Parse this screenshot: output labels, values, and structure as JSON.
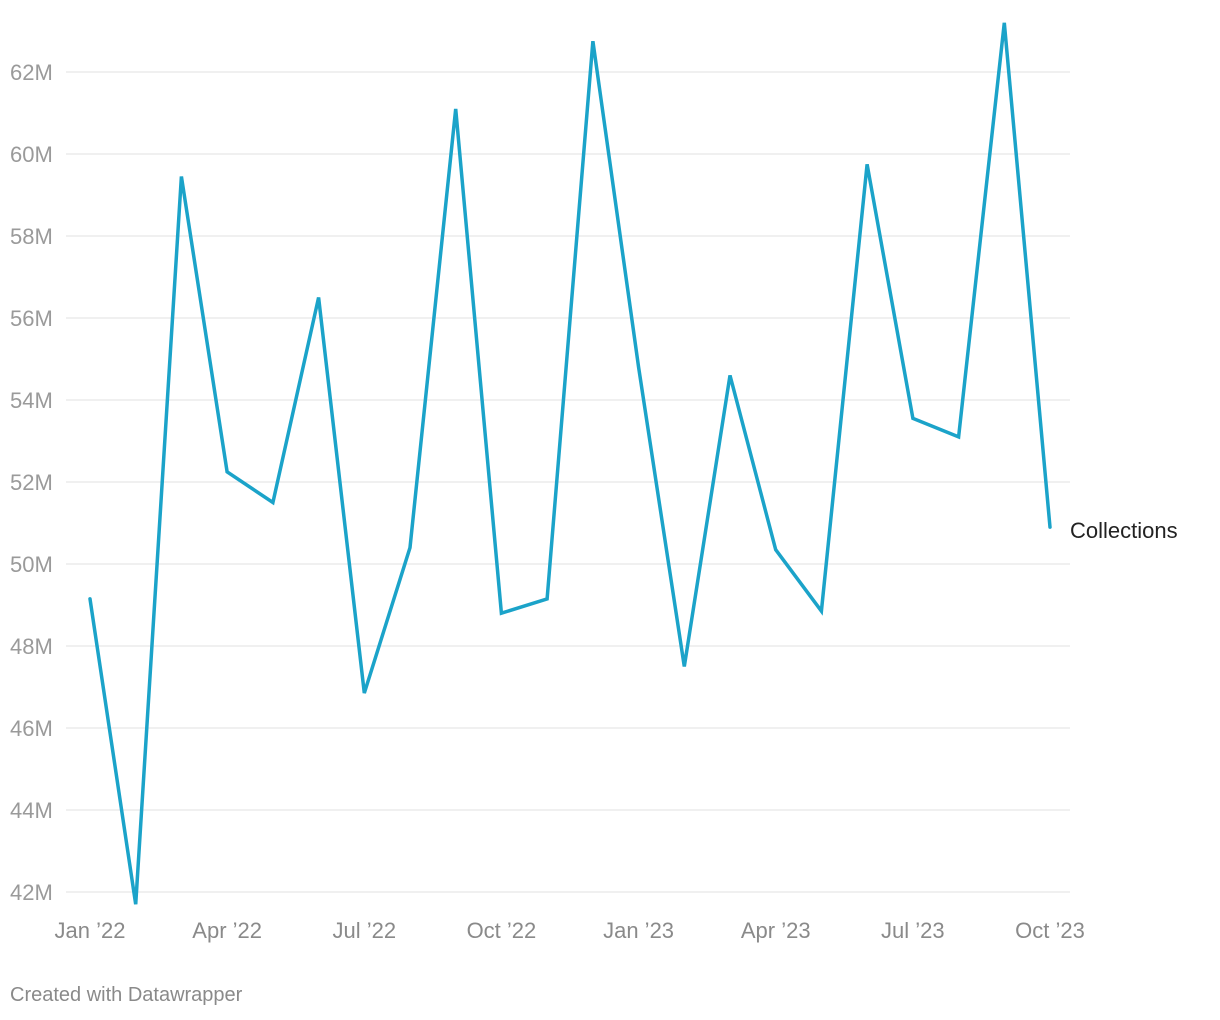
{
  "chart_data": {
    "type": "line",
    "title": "",
    "xlabel": "",
    "ylabel": "",
    "x": [
      "2022-01",
      "2022-02",
      "2022-03",
      "2022-04",
      "2022-05",
      "2022-06",
      "2022-07",
      "2022-08",
      "2022-09",
      "2022-10",
      "2022-11",
      "2022-12",
      "2023-01",
      "2023-02",
      "2023-03",
      "2023-04",
      "2023-05",
      "2023-06",
      "2023-07",
      "2023-08",
      "2023-09",
      "2023-10"
    ],
    "x_ticks": [
      {
        "x": "2022-01",
        "label": "Jan ’22"
      },
      {
        "x": "2022-04",
        "label": "Apr ’22"
      },
      {
        "x": "2022-07",
        "label": "Jul ’22"
      },
      {
        "x": "2022-10",
        "label": "Oct ’22"
      },
      {
        "x": "2023-01",
        "label": "Jan ’23"
      },
      {
        "x": "2023-04",
        "label": "Apr ’23"
      },
      {
        "x": "2023-07",
        "label": "Jul ’23"
      },
      {
        "x": "2023-10",
        "label": "Oct ’23"
      }
    ],
    "y_ticks": [
      {
        "value": 42000000,
        "label": "42M"
      },
      {
        "value": 44000000,
        "label": "44M"
      },
      {
        "value": 46000000,
        "label": "46M"
      },
      {
        "value": 48000000,
        "label": "48M"
      },
      {
        "value": 50000000,
        "label": "50M"
      },
      {
        "value": 52000000,
        "label": "52M"
      },
      {
        "value": 54000000,
        "label": "54M"
      },
      {
        "value": 56000000,
        "label": "56M"
      },
      {
        "value": 58000000,
        "label": "58M"
      },
      {
        "value": 60000000,
        "label": "60M"
      },
      {
        "value": 62000000,
        "label": "62M"
      }
    ],
    "ylim": [
      42000000,
      62000000
    ],
    "grid": true,
    "legend": "none",
    "series": [
      {
        "name": "Collections",
        "color": "#1ba3c9",
        "values": [
          49150000,
          41700000,
          59450000,
          52250000,
          51500000,
          56500000,
          46850000,
          50400000,
          61100000,
          48800000,
          49150000,
          62750000,
          54800000,
          47500000,
          54600000,
          50350000,
          48850000,
          59750000,
          53550000,
          53100000,
          63200000,
          50900000
        ]
      }
    ]
  },
  "footer": {
    "credit": "Created with Datawrapper"
  }
}
